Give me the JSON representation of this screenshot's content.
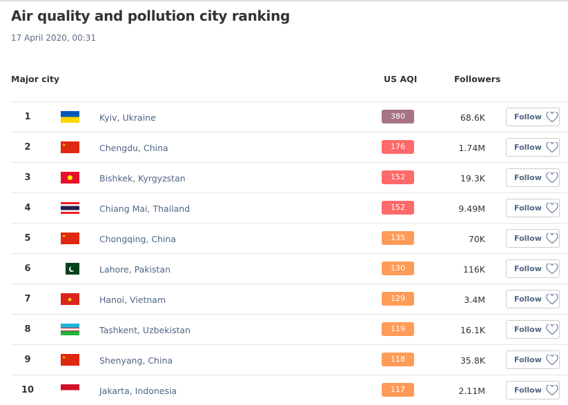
{
  "title": "Air quality and pollution city ranking",
  "date": "17 April 2020, 00:31",
  "headers": {
    "city": "Major city",
    "aqi": "US AQI",
    "followers": "Followers"
  },
  "follow_label": "Follow",
  "aqi_colors": {
    "very_unhealthy": "#a87383",
    "unhealthy": "#fe6a69",
    "sensitive": "#fe9b57"
  },
  "rows": [
    {
      "rank": "1",
      "flag": "ukraine-flag",
      "city": "Kyiv, Ukraine",
      "aqi": "380",
      "level": "very_unhealthy",
      "followers": "68.6K"
    },
    {
      "rank": "2",
      "flag": "china-flag",
      "city": "Chengdu, China",
      "aqi": "176",
      "level": "unhealthy",
      "followers": "1.74M"
    },
    {
      "rank": "3",
      "flag": "kyrgyzstan-flag",
      "city": "Bishkek, Kyrgyzstan",
      "aqi": "152",
      "level": "unhealthy",
      "followers": "19.3K"
    },
    {
      "rank": "4",
      "flag": "thailand-flag",
      "city": "Chiang Mai, Thailand",
      "aqi": "152",
      "level": "unhealthy",
      "followers": "9.49M"
    },
    {
      "rank": "5",
      "flag": "china-flag",
      "city": "Chongqing, China",
      "aqi": "135",
      "level": "sensitive",
      "followers": "70K"
    },
    {
      "rank": "6",
      "flag": "pakistan-flag",
      "city": "Lahore, Pakistan",
      "aqi": "130",
      "level": "sensitive",
      "followers": "116K"
    },
    {
      "rank": "7",
      "flag": "vietnam-flag",
      "city": "Hanoi, Vietnam",
      "aqi": "129",
      "level": "sensitive",
      "followers": "3.4M"
    },
    {
      "rank": "8",
      "flag": "uzbekistan-flag",
      "city": "Tashkent, Uzbekistan",
      "aqi": "119",
      "level": "sensitive",
      "followers": "16.1K"
    },
    {
      "rank": "9",
      "flag": "china-flag",
      "city": "Shenyang, China",
      "aqi": "118",
      "level": "sensitive",
      "followers": "35.8K"
    },
    {
      "rank": "10",
      "flag": "indonesia-flag",
      "city": "Jakarta, Indonesia",
      "aqi": "117",
      "level": "sensitive",
      "followers": "2.11M"
    }
  ]
}
